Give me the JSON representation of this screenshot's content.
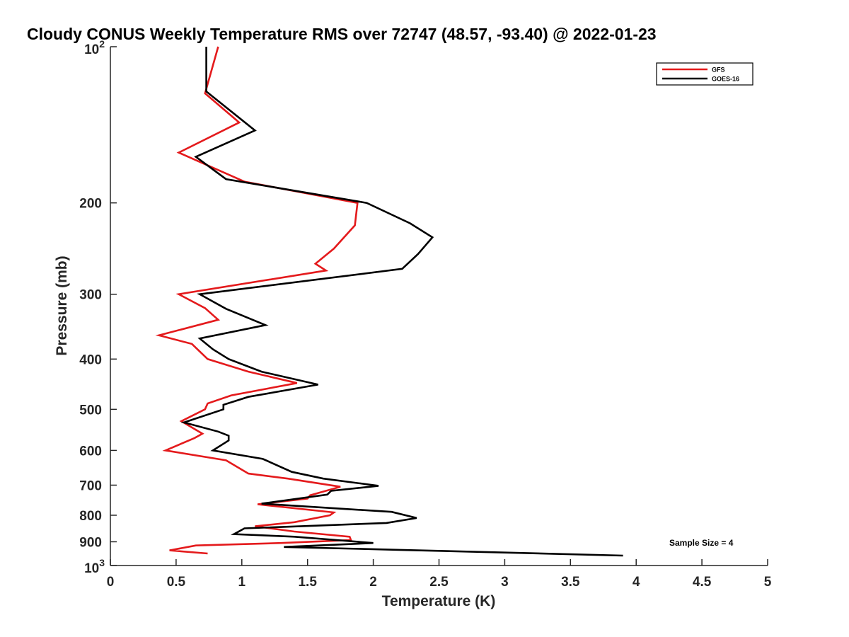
{
  "chart_data": {
    "type": "line",
    "title": "Cloudy CONUS Weekly Temperature RMS over 72747 (48.57, -93.40) @ 2022-01-23",
    "xlabel": "Temperature (K)",
    "ylabel": "Pressure (mb)",
    "xlim": [
      0,
      5
    ],
    "ylim": [
      100,
      1000
    ],
    "y_scale": "log",
    "y_reversed": true,
    "x_ticks": [
      0,
      0.5,
      1,
      1.5,
      2,
      2.5,
      3,
      3.5,
      4,
      4.5,
      5
    ],
    "x_tick_labels": [
      "0",
      "0.5",
      "1",
      "1.5",
      "2",
      "2.5",
      "3",
      "3.5",
      "4",
      "4.5",
      "5"
    ],
    "y_ticks": [
      200,
      300,
      400,
      500,
      600,
      700,
      800,
      900
    ],
    "y_tick_labels": [
      "200",
      "300",
      "400",
      "500",
      "600",
      "700",
      "800",
      "900"
    ],
    "y_end_labels": [
      {
        "value": 100,
        "base": "10",
        "exp": "2"
      },
      {
        "value": 1000,
        "base": "10",
        "exp": "3"
      }
    ],
    "grid": false,
    "legend_position": "top-right",
    "annotation": "Sample Size = 4",
    "series": [
      {
        "name": "GFS",
        "color": "#e41a1c",
        "points": [
          [
            0.82,
            100
          ],
          [
            0.72,
            123
          ],
          [
            0.98,
            140
          ],
          [
            0.52,
            160
          ],
          [
            1.02,
            182
          ],
          [
            1.88,
            200
          ],
          [
            1.86,
            221
          ],
          [
            1.7,
            245
          ],
          [
            1.56,
            262
          ],
          [
            1.64,
            270
          ],
          [
            0.52,
            300
          ],
          [
            0.72,
            319
          ],
          [
            0.82,
            336
          ],
          [
            0.37,
            360
          ],
          [
            0.62,
            374
          ],
          [
            0.74,
            400
          ],
          [
            1.05,
            423
          ],
          [
            1.42,
            445
          ],
          [
            0.92,
            470
          ],
          [
            0.74,
            487
          ],
          [
            0.72,
            500
          ],
          [
            0.54,
            527
          ],
          [
            0.6,
            538
          ],
          [
            0.7,
            557
          ],
          [
            0.64,
            568
          ],
          [
            0.42,
            600
          ],
          [
            0.88,
            627
          ],
          [
            1.05,
            665
          ],
          [
            1.35,
            680
          ],
          [
            1.75,
            705
          ],
          [
            1.52,
            732
          ],
          [
            1.5,
            743
          ],
          [
            1.12,
            762
          ],
          [
            1.7,
            790
          ],
          [
            1.67,
            800
          ],
          [
            1.4,
            825
          ],
          [
            1.1,
            840
          ],
          [
            1.4,
            860
          ],
          [
            1.82,
            880
          ],
          [
            1.83,
            893
          ],
          [
            1.3,
            905
          ],
          [
            0.65,
            915
          ],
          [
            0.45,
            935
          ],
          [
            0.74,
            948
          ]
        ]
      },
      {
        "name": "GOES-16",
        "color": "#000000",
        "points": [
          [
            0.73,
            100
          ],
          [
            0.73,
            122
          ],
          [
            1.1,
            145
          ],
          [
            0.65,
            163
          ],
          [
            0.88,
            180
          ],
          [
            1.95,
            200
          ],
          [
            2.28,
            219
          ],
          [
            2.45,
            233
          ],
          [
            2.34,
            251
          ],
          [
            2.22,
            268
          ],
          [
            0.68,
            300
          ],
          [
            0.88,
            320
          ],
          [
            1.18,
            344
          ],
          [
            0.68,
            365
          ],
          [
            0.78,
            383
          ],
          [
            0.9,
            400
          ],
          [
            1.15,
            423
          ],
          [
            1.58,
            448
          ],
          [
            1.05,
            473
          ],
          [
            0.86,
            490
          ],
          [
            0.86,
            500
          ],
          [
            0.56,
            530
          ],
          [
            0.82,
            552
          ],
          [
            0.9,
            562
          ],
          [
            0.9,
            574
          ],
          [
            0.78,
            600
          ],
          [
            1.16,
            623
          ],
          [
            1.38,
            660
          ],
          [
            1.62,
            680
          ],
          [
            2.04,
            702
          ],
          [
            1.68,
            718
          ],
          [
            1.65,
            730
          ],
          [
            1.15,
            760
          ],
          [
            2.14,
            788
          ],
          [
            2.33,
            810
          ],
          [
            2.1,
            828
          ],
          [
            1.02,
            848
          ],
          [
            0.94,
            870
          ],
          [
            1.4,
            880
          ],
          [
            2.0,
            905
          ],
          [
            1.32,
            921
          ],
          [
            2.2,
            933
          ],
          [
            3.9,
            957
          ]
        ]
      }
    ]
  }
}
